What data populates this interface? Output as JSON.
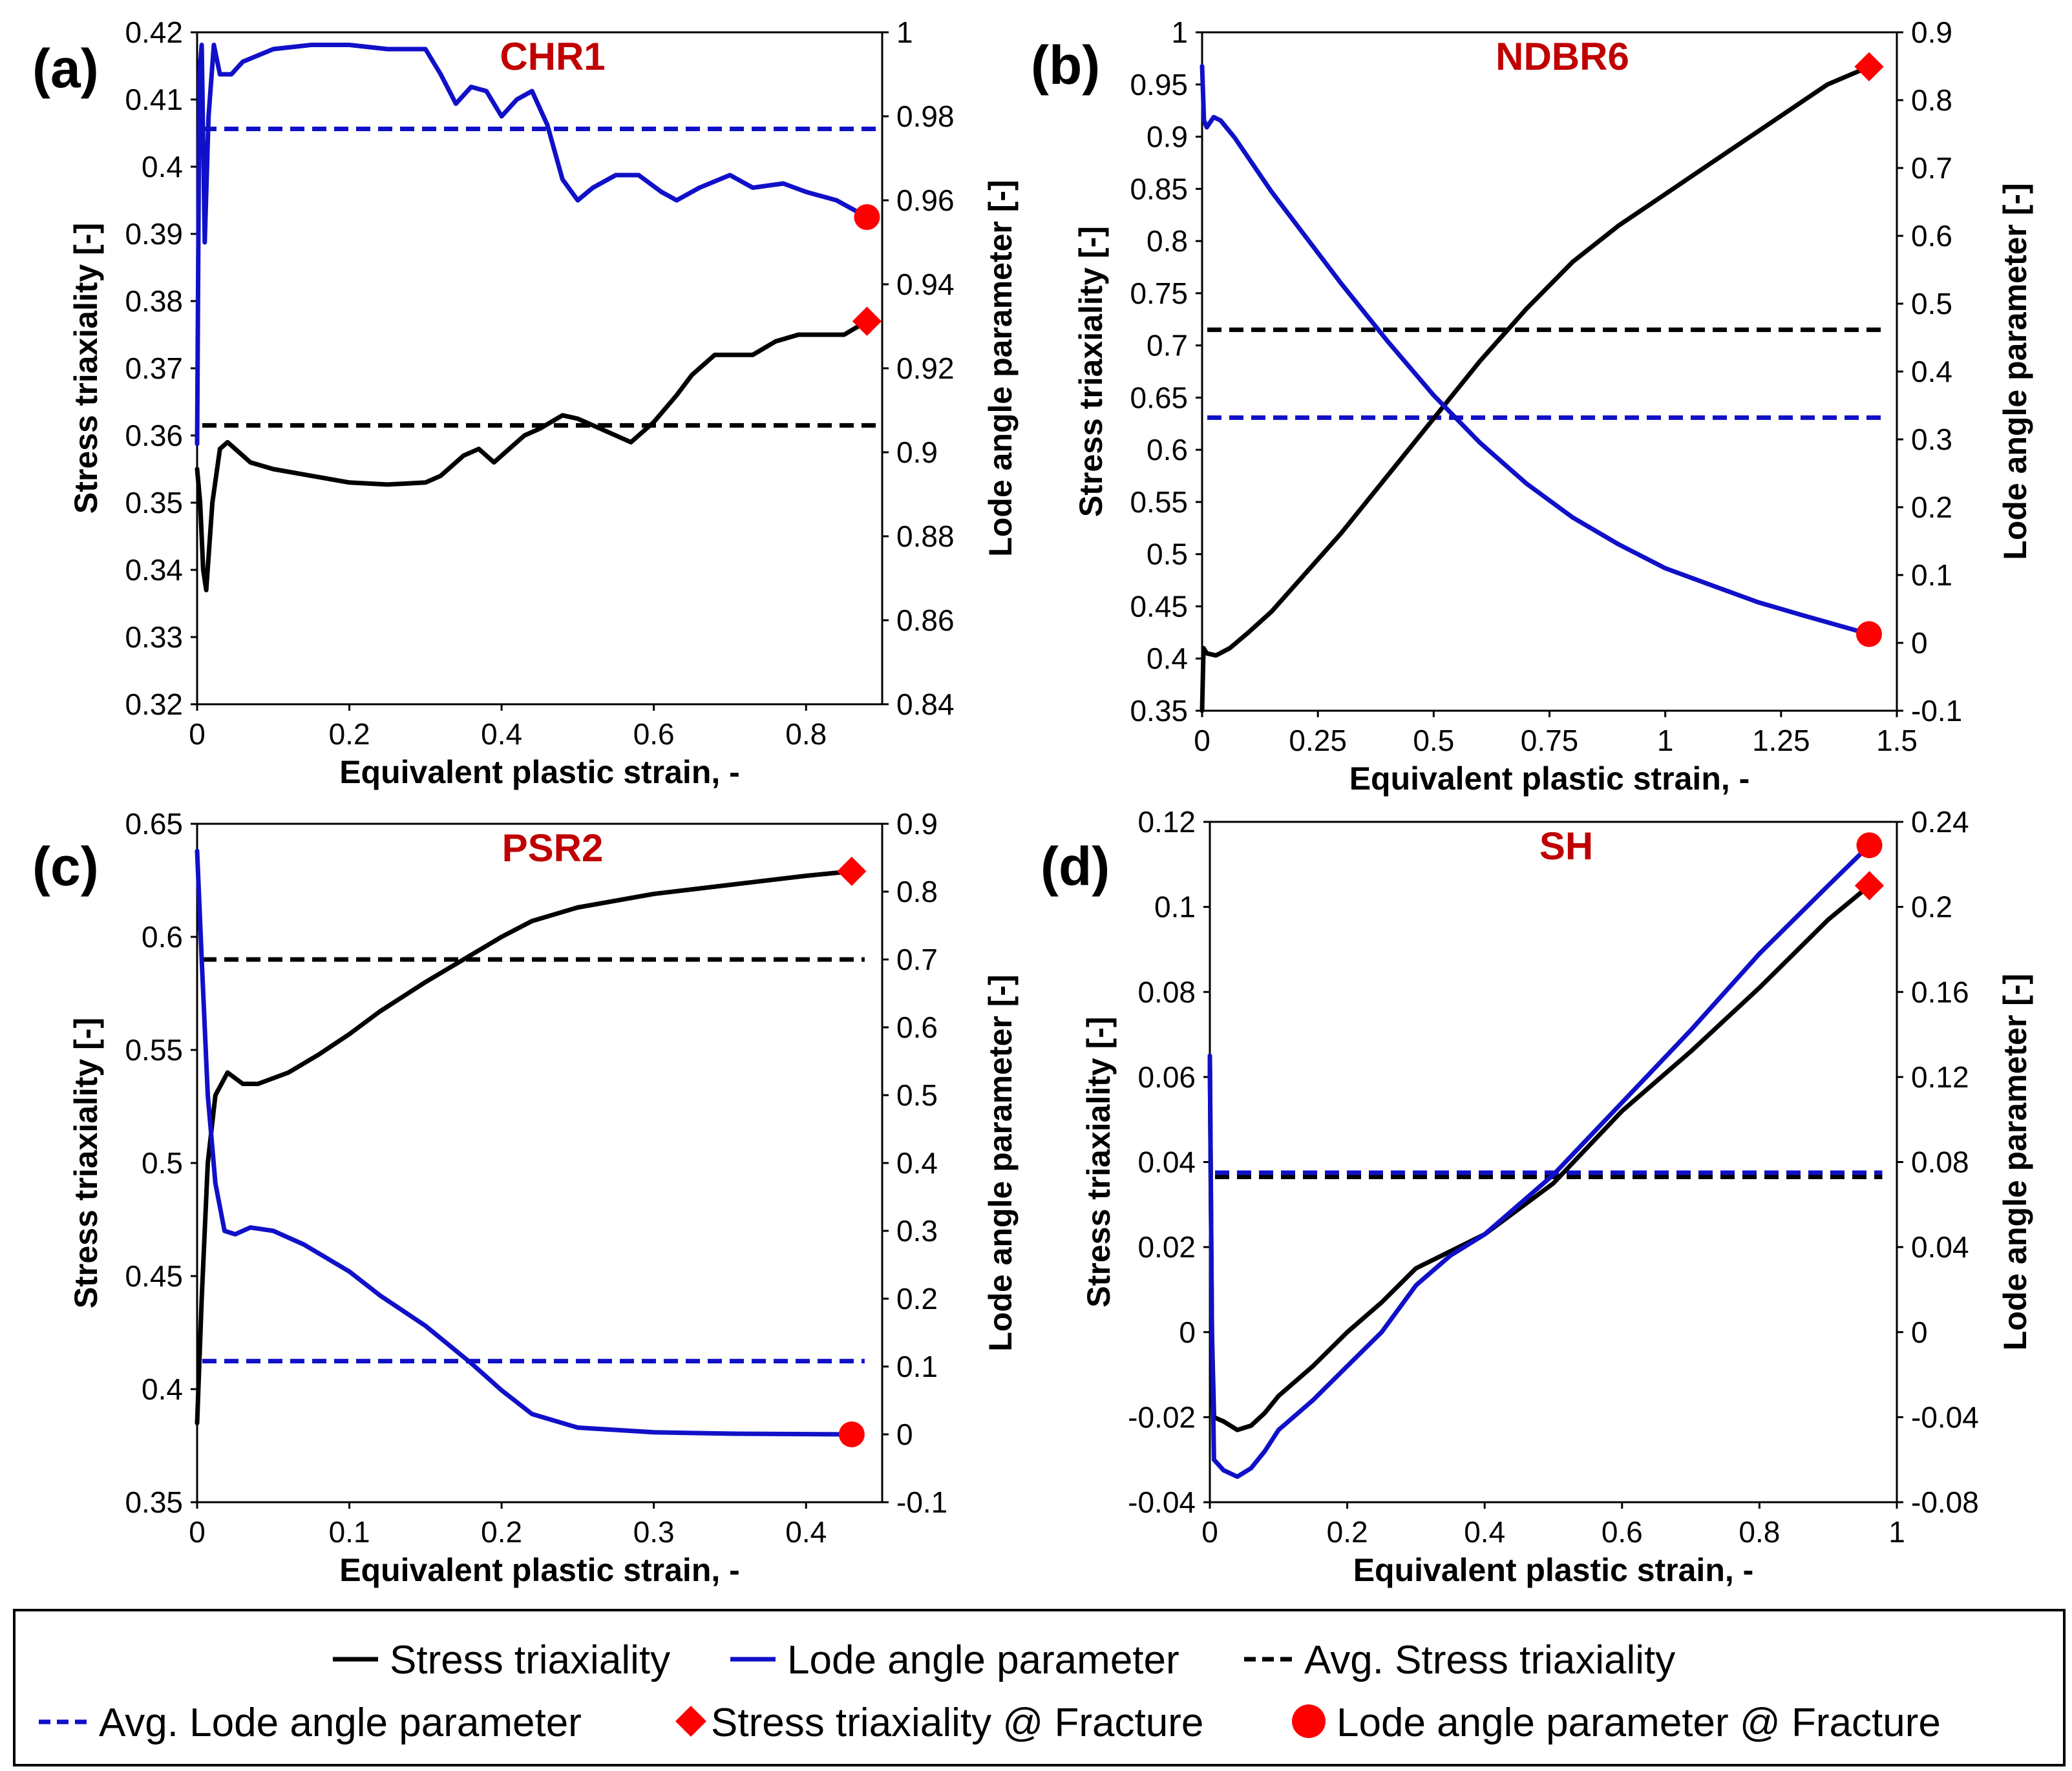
{
  "figure": {
    "legend": {
      "stress": "Stress triaxiality",
      "lode": "Lode angle parameter",
      "avg_stress": "Avg. Stress triaxiality",
      "avg_lode": "Avg. Lode angle parameter",
      "stress_fracture": "Stress triaxiality @ Fracture",
      "lode_fracture": "Lode angle parameter @ Fracture"
    },
    "colors": {
      "stress": "#000000",
      "lode": "#1010c8",
      "marker": "#ff0000",
      "title": "#c00000"
    }
  },
  "chart_data": [
    {
      "panel": "(a)",
      "type": "line",
      "title": "CHR1",
      "xlabel": "Equivalent plastic strain, -",
      "ylabel": "Stress triaxiality [-]",
      "y2label": "Lode angle parameter [-]",
      "xlim": [
        0,
        0.9
      ],
      "xticks": [
        "0",
        "0.2",
        "0.4",
        "0.6",
        "0.8"
      ],
      "ylim": [
        0.32,
        0.42
      ],
      "yticks": [
        "0.32",
        "0.33",
        "0.34",
        "0.35",
        "0.36",
        "0.37",
        "0.38",
        "0.39",
        "0.4",
        "0.41",
        "0.42"
      ],
      "y2lim": [
        0.84,
        1.0
      ],
      "y2ticks": [
        "0.84",
        "0.86",
        "0.88",
        "0.9",
        "0.92",
        "0.94",
        "0.96",
        "0.98",
        "1"
      ],
      "stress": [
        [
          0,
          0.355
        ],
        [
          0.004,
          0.35
        ],
        [
          0.008,
          0.34
        ],
        [
          0.012,
          0.337
        ],
        [
          0.02,
          0.35
        ],
        [
          0.03,
          0.358
        ],
        [
          0.04,
          0.359
        ],
        [
          0.05,
          0.358
        ],
        [
          0.07,
          0.356
        ],
        [
          0.1,
          0.355
        ],
        [
          0.15,
          0.354
        ],
        [
          0.2,
          0.353
        ],
        [
          0.25,
          0.3527
        ],
        [
          0.3,
          0.353
        ],
        [
          0.32,
          0.354
        ],
        [
          0.35,
          0.357
        ],
        [
          0.37,
          0.358
        ],
        [
          0.39,
          0.356
        ],
        [
          0.41,
          0.358
        ],
        [
          0.43,
          0.36
        ],
        [
          0.45,
          0.361
        ],
        [
          0.48,
          0.363
        ],
        [
          0.5,
          0.3625
        ],
        [
          0.53,
          0.361
        ],
        [
          0.57,
          0.359
        ],
        [
          0.6,
          0.362
        ],
        [
          0.63,
          0.366
        ],
        [
          0.65,
          0.369
        ],
        [
          0.68,
          0.372
        ],
        [
          0.71,
          0.372
        ],
        [
          0.73,
          0.372
        ],
        [
          0.76,
          0.374
        ],
        [
          0.79,
          0.375
        ],
        [
          0.82,
          0.375
        ],
        [
          0.85,
          0.375
        ],
        [
          0.88,
          0.377
        ]
      ],
      "lode": [
        [
          0,
          0.902
        ],
        [
          0.003,
          0.99
        ],
        [
          0.006,
          0.997
        ],
        [
          0.01,
          0.95
        ],
        [
          0.015,
          0.98
        ],
        [
          0.022,
          0.997
        ],
        [
          0.03,
          0.99
        ],
        [
          0.045,
          0.99
        ],
        [
          0.06,
          0.993
        ],
        [
          0.1,
          0.996
        ],
        [
          0.15,
          0.997
        ],
        [
          0.2,
          0.997
        ],
        [
          0.25,
          0.996
        ],
        [
          0.3,
          0.996
        ],
        [
          0.32,
          0.99
        ],
        [
          0.34,
          0.983
        ],
        [
          0.36,
          0.987
        ],
        [
          0.38,
          0.986
        ],
        [
          0.4,
          0.98
        ],
        [
          0.42,
          0.984
        ],
        [
          0.44,
          0.986
        ],
        [
          0.46,
          0.978
        ],
        [
          0.48,
          0.965
        ],
        [
          0.5,
          0.96
        ],
        [
          0.52,
          0.963
        ],
        [
          0.55,
          0.966
        ],
        [
          0.58,
          0.966
        ],
        [
          0.61,
          0.962
        ],
        [
          0.63,
          0.96
        ],
        [
          0.66,
          0.963
        ],
        [
          0.7,
          0.966
        ],
        [
          0.73,
          0.963
        ],
        [
          0.77,
          0.964
        ],
        [
          0.8,
          0.962
        ],
        [
          0.84,
          0.96
        ],
        [
          0.87,
          0.957
        ],
        [
          0.88,
          0.956
        ]
      ],
      "avg_stress": 0.3615,
      "avg_lode": 0.977,
      "stress_fracture": [
        0.88,
        0.377
      ],
      "lode_fracture": [
        0.88,
        0.956
      ]
    },
    {
      "panel": "(b)",
      "type": "line",
      "title": "NDBR6",
      "xlabel": "Equivalent plastic strain, -",
      "ylabel": "Stress triaxiality [-]",
      "y2label": "Lode angle parameter [-]",
      "xlim": [
        0,
        1.5
      ],
      "xticks": [
        "0",
        "0.25",
        "0.5",
        "0.75",
        "1",
        "1.25",
        "1.5"
      ],
      "ylim": [
        0.35,
        1.0
      ],
      "yticks": [
        "0.35",
        "0.4",
        "0.45",
        "0.5",
        "0.55",
        "0.6",
        "0.65",
        "0.7",
        "0.75",
        "0.8",
        "0.85",
        "0.9",
        "0.95",
        "1"
      ],
      "y2lim": [
        -0.1,
        0.9
      ],
      "y2ticks": [
        "-0.1",
        "0",
        "0.1",
        "0.2",
        "0.3",
        "0.4",
        "0.5",
        "0.6",
        "0.7",
        "0.8",
        "0.9"
      ],
      "stress": [
        [
          0,
          0.35
        ],
        [
          0.003,
          0.41
        ],
        [
          0.01,
          0.405
        ],
        [
          0.03,
          0.403
        ],
        [
          0.06,
          0.41
        ],
        [
          0.1,
          0.425
        ],
        [
          0.15,
          0.445
        ],
        [
          0.2,
          0.47
        ],
        [
          0.3,
          0.52
        ],
        [
          0.4,
          0.575
        ],
        [
          0.5,
          0.63
        ],
        [
          0.6,
          0.685
        ],
        [
          0.7,
          0.735
        ],
        [
          0.8,
          0.78
        ],
        [
          0.9,
          0.815
        ],
        [
          1.0,
          0.845
        ],
        [
          1.1,
          0.875
        ],
        [
          1.2,
          0.905
        ],
        [
          1.3,
          0.935
        ],
        [
          1.35,
          0.95
        ],
        [
          1.44,
          0.967
        ]
      ],
      "lode": [
        [
          0,
          0.85
        ],
        [
          0.004,
          0.77
        ],
        [
          0.01,
          0.76
        ],
        [
          0.025,
          0.775
        ],
        [
          0.04,
          0.77
        ],
        [
          0.07,
          0.745
        ],
        [
          0.1,
          0.715
        ],
        [
          0.15,
          0.665
        ],
        [
          0.2,
          0.62
        ],
        [
          0.3,
          0.53
        ],
        [
          0.4,
          0.445
        ],
        [
          0.5,
          0.365
        ],
        [
          0.6,
          0.295
        ],
        [
          0.7,
          0.235
        ],
        [
          0.8,
          0.185
        ],
        [
          0.9,
          0.145
        ],
        [
          1.0,
          0.11
        ],
        [
          1.1,
          0.085
        ],
        [
          1.2,
          0.06
        ],
        [
          1.3,
          0.04
        ],
        [
          1.44,
          0.013
        ]
      ],
      "avg_stress": 0.715,
      "avg_lode": 0.332,
      "stress_fracture": [
        1.44,
        0.967
      ],
      "lode_fracture": [
        1.44,
        0.013
      ]
    },
    {
      "panel": "(c)",
      "type": "line",
      "title": "PSR2",
      "xlabel": "Equivalent plastic strain, -",
      "ylabel": "Stress triaxiality [-]",
      "y2label": "Lode angle parameter [-]",
      "xlim": [
        0,
        0.45
      ],
      "xticks": [
        "0",
        "0.1",
        "0.2",
        "0.3",
        "0.4"
      ],
      "ylim": [
        0.35,
        0.65
      ],
      "yticks": [
        "0.35",
        "0.4",
        "0.45",
        "0.5",
        "0.55",
        "0.6",
        "0.65"
      ],
      "y2lim": [
        -0.1,
        0.9
      ],
      "y2ticks": [
        "-0.1",
        "0",
        "0.1",
        "0.2",
        "0.3",
        "0.4",
        "0.5",
        "0.6",
        "0.7",
        "0.8",
        "0.9"
      ],
      "stress": [
        [
          0,
          0.385
        ],
        [
          0.003,
          0.44
        ],
        [
          0.007,
          0.5
        ],
        [
          0.012,
          0.53
        ],
        [
          0.02,
          0.54
        ],
        [
          0.03,
          0.535
        ],
        [
          0.04,
          0.535
        ],
        [
          0.06,
          0.54
        ],
        [
          0.08,
          0.548
        ],
        [
          0.1,
          0.557
        ],
        [
          0.12,
          0.567
        ],
        [
          0.15,
          0.58
        ],
        [
          0.18,
          0.592
        ],
        [
          0.2,
          0.6
        ],
        [
          0.22,
          0.607
        ],
        [
          0.25,
          0.613
        ],
        [
          0.3,
          0.619
        ],
        [
          0.35,
          0.623
        ],
        [
          0.4,
          0.627
        ],
        [
          0.43,
          0.629
        ]
      ],
      "lode": [
        [
          0,
          0.86
        ],
        [
          0.003,
          0.7
        ],
        [
          0.007,
          0.5
        ],
        [
          0.012,
          0.37
        ],
        [
          0.018,
          0.3
        ],
        [
          0.025,
          0.295
        ],
        [
          0.035,
          0.305
        ],
        [
          0.05,
          0.3
        ],
        [
          0.07,
          0.28
        ],
        [
          0.1,
          0.24
        ],
        [
          0.12,
          0.205
        ],
        [
          0.15,
          0.16
        ],
        [
          0.18,
          0.105
        ],
        [
          0.2,
          0.065
        ],
        [
          0.22,
          0.03
        ],
        [
          0.25,
          0.01
        ],
        [
          0.3,
          0.003
        ],
        [
          0.35,
          0.001
        ],
        [
          0.43,
          0.0
        ]
      ],
      "avg_stress": 0.59,
      "avg_lode": 0.108,
      "stress_fracture": [
        0.43,
        0.629
      ],
      "lode_fracture": [
        0.43,
        0.0
      ]
    },
    {
      "panel": "(d)",
      "type": "line",
      "title": "SH",
      "xlabel": "Equivalent plastic strain, -",
      "ylabel": "Stress triaxiality [-]",
      "y2label": "Lode angle parameter [-]",
      "xlim": [
        0,
        1.0
      ],
      "xticks": [
        "0",
        "0.2",
        "0.4",
        "0.6",
        "0.8",
        "1"
      ],
      "ylim": [
        -0.04,
        0.12
      ],
      "yticks": [
        "-0.04",
        "-0.02",
        "0",
        "0.02",
        "0.04",
        "0.06",
        "0.08",
        "0.1",
        "0.12"
      ],
      "y2lim": [
        -0.08,
        0.24
      ],
      "y2ticks": [
        "-0.08",
        "-0.04",
        "0",
        "0.04",
        "0.08",
        "0.12",
        "0.16",
        "0.2",
        "0.24"
      ],
      "stress": [
        [
          0,
          0.064
        ],
        [
          0.003,
          0.0
        ],
        [
          0.006,
          -0.02
        ],
        [
          0.02,
          -0.021
        ],
        [
          0.04,
          -0.023
        ],
        [
          0.06,
          -0.022
        ],
        [
          0.08,
          -0.019
        ],
        [
          0.1,
          -0.015
        ],
        [
          0.15,
          -0.008
        ],
        [
          0.2,
          0.0
        ],
        [
          0.25,
          0.007
        ],
        [
          0.3,
          0.015
        ],
        [
          0.35,
          0.019
        ],
        [
          0.4,
          0.023
        ],
        [
          0.5,
          0.035
        ],
        [
          0.6,
          0.052
        ],
        [
          0.7,
          0.066
        ],
        [
          0.8,
          0.081
        ],
        [
          0.9,
          0.097
        ],
        [
          0.96,
          0.105
        ]
      ],
      "lode": [
        [
          0,
          0.13
        ],
        [
          0.003,
          0.0
        ],
        [
          0.006,
          -0.06
        ],
        [
          0.02,
          -0.065
        ],
        [
          0.04,
          -0.068
        ],
        [
          0.06,
          -0.064
        ],
        [
          0.08,
          -0.056
        ],
        [
          0.1,
          -0.046
        ],
        [
          0.15,
          -0.032
        ],
        [
          0.2,
          -0.016
        ],
        [
          0.25,
          0.0
        ],
        [
          0.3,
          0.022
        ],
        [
          0.35,
          0.036
        ],
        [
          0.4,
          0.046
        ],
        [
          0.5,
          0.074
        ],
        [
          0.6,
          0.108
        ],
        [
          0.7,
          0.142
        ],
        [
          0.8,
          0.178
        ],
        [
          0.9,
          0.21
        ],
        [
          0.96,
          0.229
        ]
      ],
      "avg_stress": 0.0365,
      "avg_lode": 0.075,
      "stress_fracture": [
        0.96,
        0.105
      ],
      "lode_fracture": [
        0.96,
        0.229
      ]
    }
  ]
}
